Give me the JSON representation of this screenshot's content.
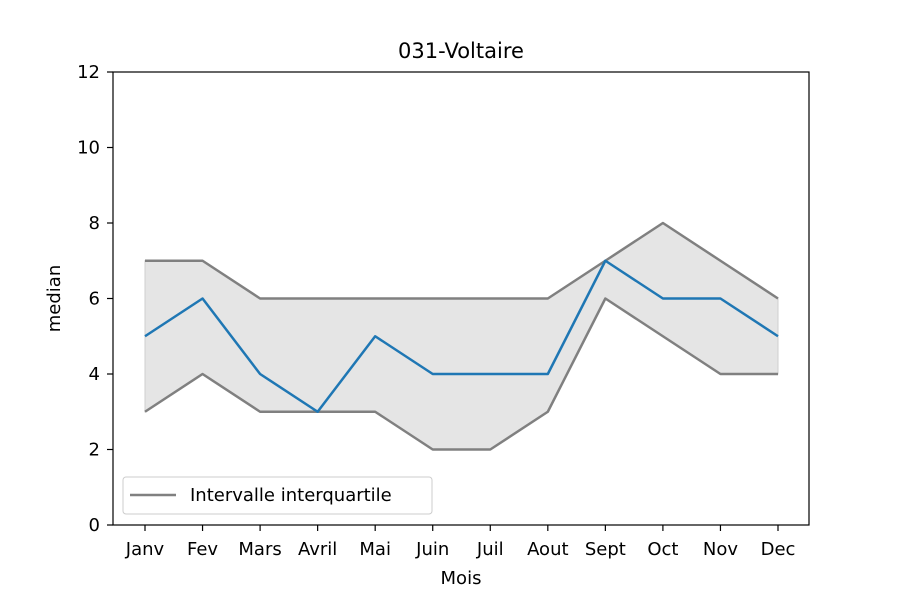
{
  "chart_data": {
    "type": "line",
    "title": "031-Voltaire",
    "xlabel": "Mois",
    "ylabel": "median",
    "categories": [
      "Janv",
      "Fev",
      "Mars",
      "Avril",
      "Mai",
      "Juin",
      "Juil",
      "Aout",
      "Sept",
      "Oct",
      "Nov",
      "Dec"
    ],
    "ylim": [
      0,
      12
    ],
    "yticks": [
      0,
      2,
      4,
      6,
      8,
      10,
      12
    ],
    "grid": false,
    "legend_position": "lower-left",
    "series": [
      {
        "role": "median",
        "values": [
          5,
          6,
          4,
          3,
          5,
          4,
          4,
          4,
          7,
          6,
          6,
          5
        ],
        "color": "#1f77b4"
      },
      {
        "name": "Intervalle interquartile",
        "role": "q3",
        "values": [
          7,
          7,
          6,
          6,
          6,
          6,
          6,
          6,
          7,
          8,
          7,
          6
        ],
        "color": "#808080"
      },
      {
        "role": "q1",
        "values": [
          3,
          4,
          3,
          3,
          3,
          2,
          2,
          3,
          6,
          5,
          4,
          4
        ],
        "color": "#808080"
      }
    ],
    "fill_color": "#e5e5e5"
  }
}
